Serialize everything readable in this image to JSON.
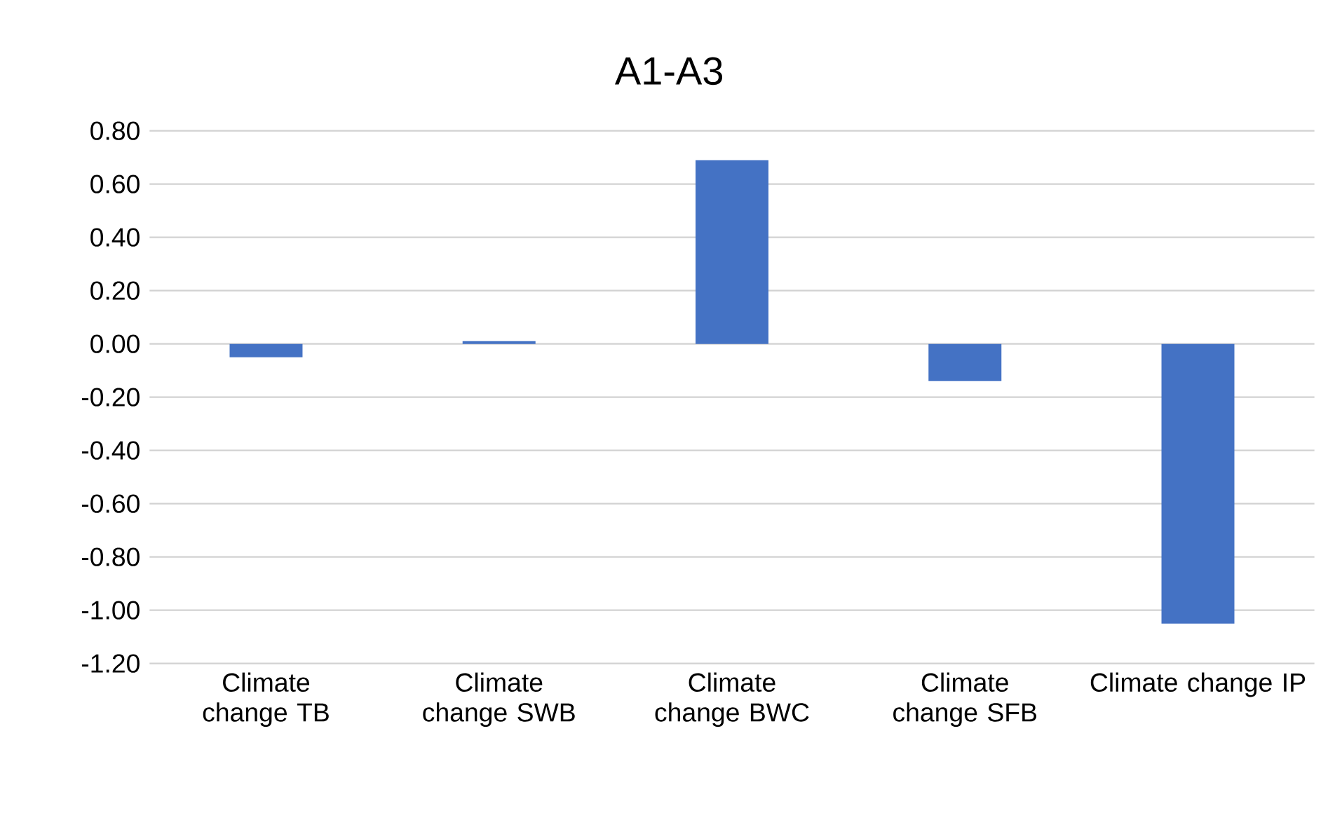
{
  "chart_data": {
    "type": "bar",
    "title": "A1-A3",
    "categories": [
      "Climate change TB",
      "Climate change SWB",
      "Climate change BWC",
      "Climate change SFB",
      "Climate change IP"
    ],
    "values": [
      -0.05,
      0.01,
      0.69,
      -0.14,
      -1.05
    ],
    "color": "#4472c4",
    "ylim": [
      -1.2,
      0.8
    ],
    "yticks": [
      {
        "value": -1.2,
        "label": "-1.20"
      },
      {
        "value": -1.0,
        "label": "-1.00"
      },
      {
        "value": -0.8,
        "label": "-0.80"
      },
      {
        "value": -0.6,
        "label": "-0.60"
      },
      {
        "value": -0.4,
        "label": "-0.40"
      },
      {
        "value": -0.2,
        "label": "-0.20"
      },
      {
        "value": 0,
        "label": "0.00"
      },
      {
        "value": 0.2,
        "label": "0.20"
      },
      {
        "value": 0.4,
        "label": "0.40"
      },
      {
        "value": 0.6,
        "label": "0.60"
      },
      {
        "value": 0.8,
        "label": "0.80"
      }
    ],
    "grid": "y"
  }
}
